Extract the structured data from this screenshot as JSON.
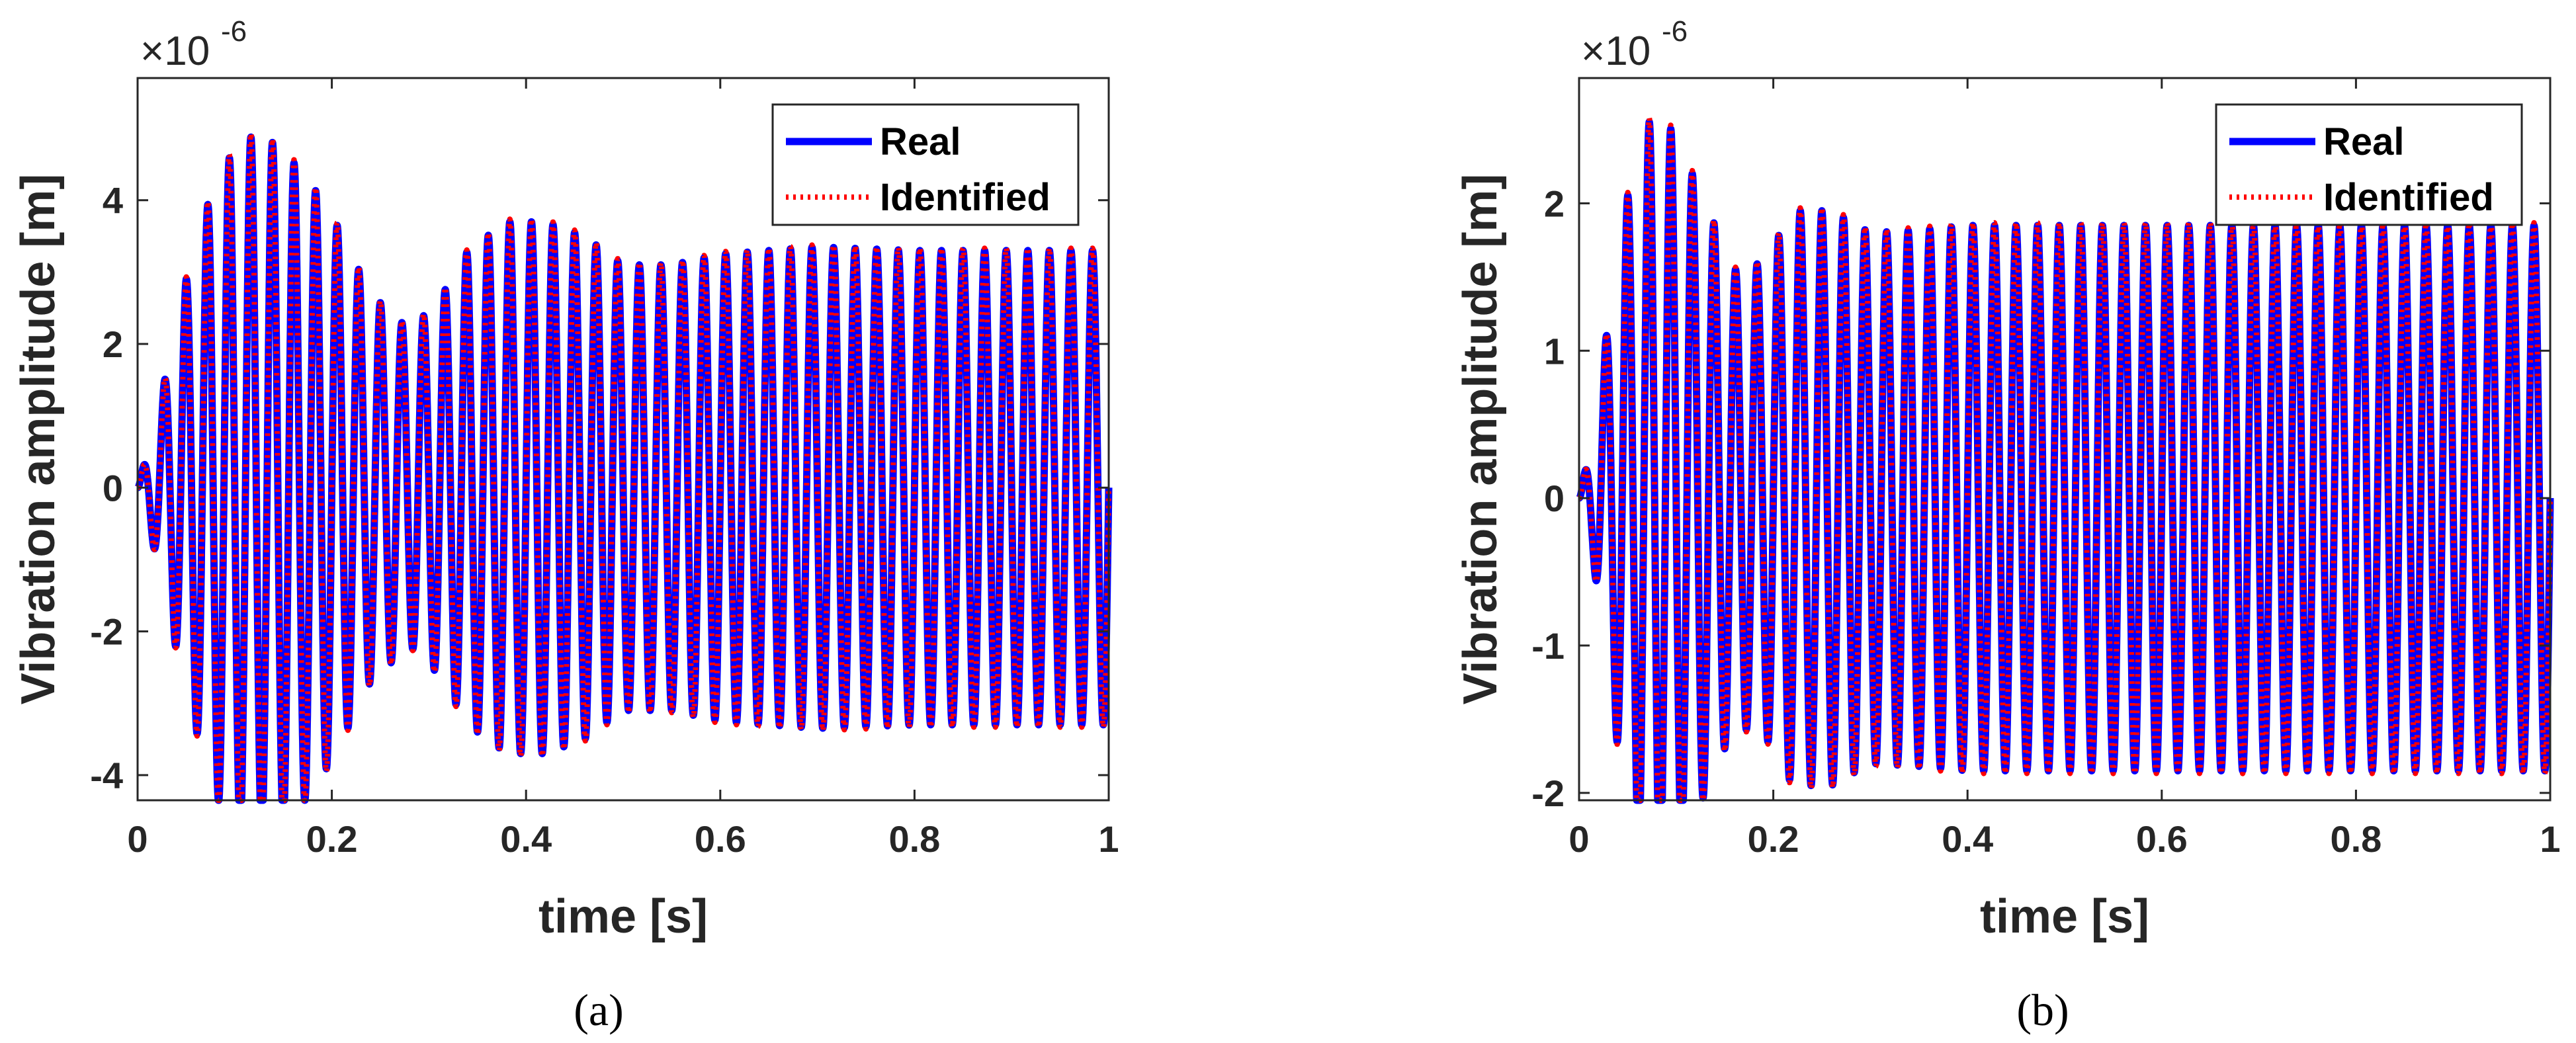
{
  "chart_data": [
    {
      "type": "line",
      "panel_label": "(a)",
      "xlabel": "time [s]",
      "ylabel": "Vibration amplitude [m]",
      "y_multiplier_base": "×10",
      "y_multiplier_exponent": "-6",
      "xlim": [
        0,
        1
      ],
      "ylim": [
        -4.35,
        5.7
      ],
      "xticks": [
        0,
        0.2,
        0.4,
        0.6,
        0.8,
        1
      ],
      "xtick_labels": [
        "0",
        "0.2",
        "0.4",
        "0.6",
        "0.8",
        "1"
      ],
      "yticks": [
        -4,
        -2,
        0,
        2,
        4
      ],
      "ytick_labels": [
        "-4",
        "-2",
        "0",
        "2",
        "4"
      ],
      "legend": {
        "position": "top-right",
        "entries": [
          "Real",
          "Identified"
        ]
      },
      "signal": {
        "frequency_hz": 45,
        "envelope_t": [
          0,
          0.02,
          0.05,
          0.08,
          0.11,
          0.14,
          0.17,
          0.2,
          0.24,
          0.28,
          0.31,
          0.34,
          0.38,
          0.42,
          0.46,
          0.5,
          0.55,
          0.6,
          0.7,
          0.8,
          1.0
        ],
        "envelope_a": [
          0,
          1.0,
          2.9,
          4.3,
          4.9,
          4.8,
          4.4,
          3.8,
          2.7,
          2.2,
          2.6,
          3.3,
          3.7,
          3.7,
          3.5,
          3.1,
          3.1,
          3.25,
          3.35,
          3.3,
          3.3
        ]
      },
      "series": [
        {
          "name": "Real",
          "color": "#0000ff",
          "style": "solid"
        },
        {
          "name": "Identified",
          "color": "#ff0000",
          "style": "dotted"
        }
      ]
    },
    {
      "type": "line",
      "panel_label": "(b)",
      "xlabel": "time [s]",
      "ylabel": "Vibration amplitude [m]",
      "y_multiplier_base": "×10",
      "y_multiplier_exponent": "-6",
      "xlim": [
        0,
        1
      ],
      "ylim": [
        -2.05,
        2.85
      ],
      "xticks": [
        0,
        0.2,
        0.4,
        0.6,
        0.8,
        1
      ],
      "xtick_labels": [
        "0",
        "0.2",
        "0.4",
        "0.6",
        "0.8",
        "1"
      ],
      "yticks": [
        -2,
        -1,
        0,
        1,
        2
      ],
      "ytick_labels": [
        "-2",
        "-1",
        "0",
        "1",
        "2"
      ],
      "legend": {
        "position": "top-right",
        "entries": [
          "Real",
          "Identified"
        ]
      },
      "signal": {
        "frequency_hz": 45,
        "envelope_t": [
          0,
          0.015,
          0.04,
          0.06,
          0.08,
          0.1,
          0.13,
          0.16,
          0.19,
          0.22,
          0.26,
          0.3,
          0.35,
          0.4,
          1.0
        ],
        "envelope_a": [
          0,
          0.45,
          1.7,
          2.4,
          2.65,
          2.45,
          2.0,
          1.55,
          1.6,
          1.95,
          1.95,
          1.8,
          1.82,
          1.85,
          1.85
        ]
      },
      "series": [
        {
          "name": "Real",
          "color": "#0000ff",
          "style": "solid"
        },
        {
          "name": "Identified",
          "color": "#ff0000",
          "style": "dotted"
        }
      ]
    }
  ]
}
